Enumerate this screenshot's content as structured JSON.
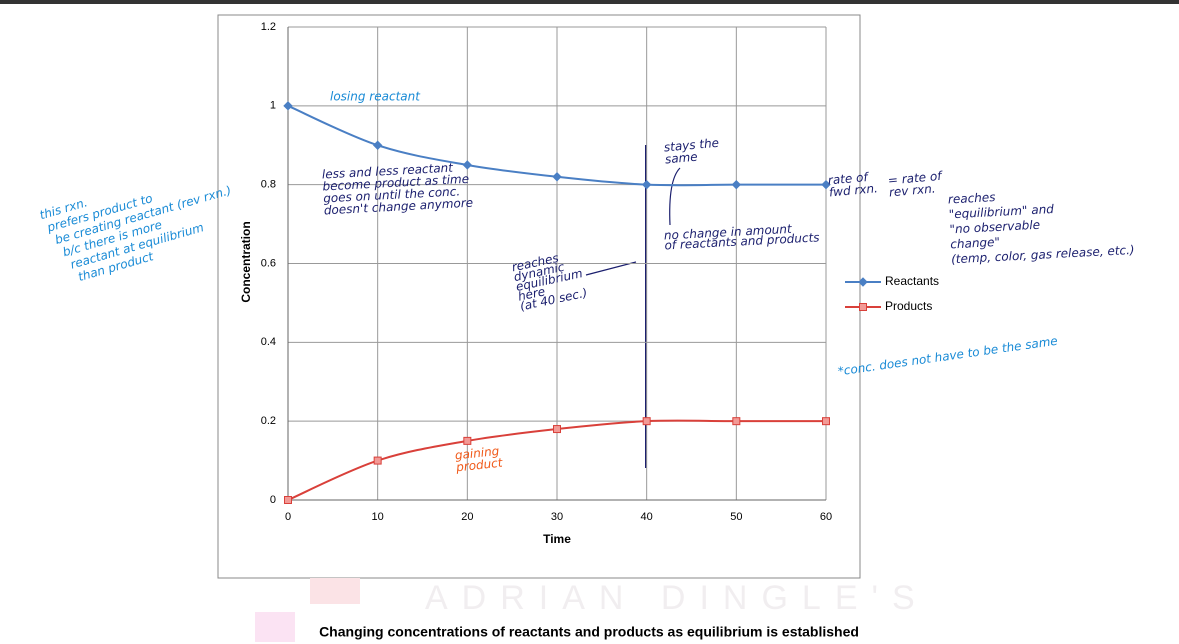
{
  "chart_data": {
    "type": "line",
    "x_label": "Time",
    "y_label": "Concentration",
    "x": [
      0,
      10,
      20,
      30,
      40,
      50,
      60
    ],
    "series": [
      {
        "name": "Reactants",
        "color": "#4a7fc4",
        "marker": "diamond",
        "values": [
          1,
          0.9,
          0.85,
          0.82,
          0.8,
          0.8,
          0.8
        ]
      },
      {
        "name": "Products",
        "color": "#d9403a",
        "marker": "square",
        "values": [
          0,
          0.1,
          0.15,
          0.18,
          0.2,
          0.2,
          0.2
        ]
      }
    ],
    "xlim": [
      0,
      60
    ],
    "xticks": [
      0,
      10,
      20,
      30,
      40,
      50,
      60
    ],
    "ylim": [
      0,
      1.2
    ],
    "yticks": [
      0,
      0.2,
      0.4,
      0.6,
      0.8,
      1,
      1.2
    ],
    "grid": true,
    "legend": "right",
    "caption": "Changing concentrations of reactants and products as equilibrium is established",
    "watermark": "ADRIAN DINGLE'S",
    "annotations": [
      {
        "lines": [
          "losing reactant"
        ]
      },
      {
        "lines": [
          "less and less reactant",
          "become product as time",
          "goes on until the conc.",
          "doesn't change anymore"
        ]
      },
      {
        "lines": [
          "stays the",
          "same"
        ]
      },
      {
        "lines": [
          "no change in amount",
          "of reactants and products"
        ]
      },
      {
        "lines": [
          "reaches",
          "dynamic",
          "equilibrium",
          "here",
          "(at 40 sec.)"
        ]
      },
      {
        "lines": [
          "gaining",
          "product"
        ]
      },
      {
        "lines": [
          "rate of",
          "fwd rxn."
        ]
      },
      {
        "lines": [
          "= rate of",
          "rev rxn."
        ]
      },
      {
        "lines": [
          "reaches",
          "\"equilibrium\" and",
          "\"no observable",
          "change\"",
          "(temp, color, gas release, etc.)"
        ]
      },
      {
        "lines": [
          "*conc. does not have to be the same"
        ]
      },
      {
        "lines": [
          "this rxn.",
          "prefers product to",
          "be creating reactant (rev rxn.)",
          "b/c there is more",
          "reactant at equilibrium",
          "than product"
        ]
      }
    ]
  }
}
